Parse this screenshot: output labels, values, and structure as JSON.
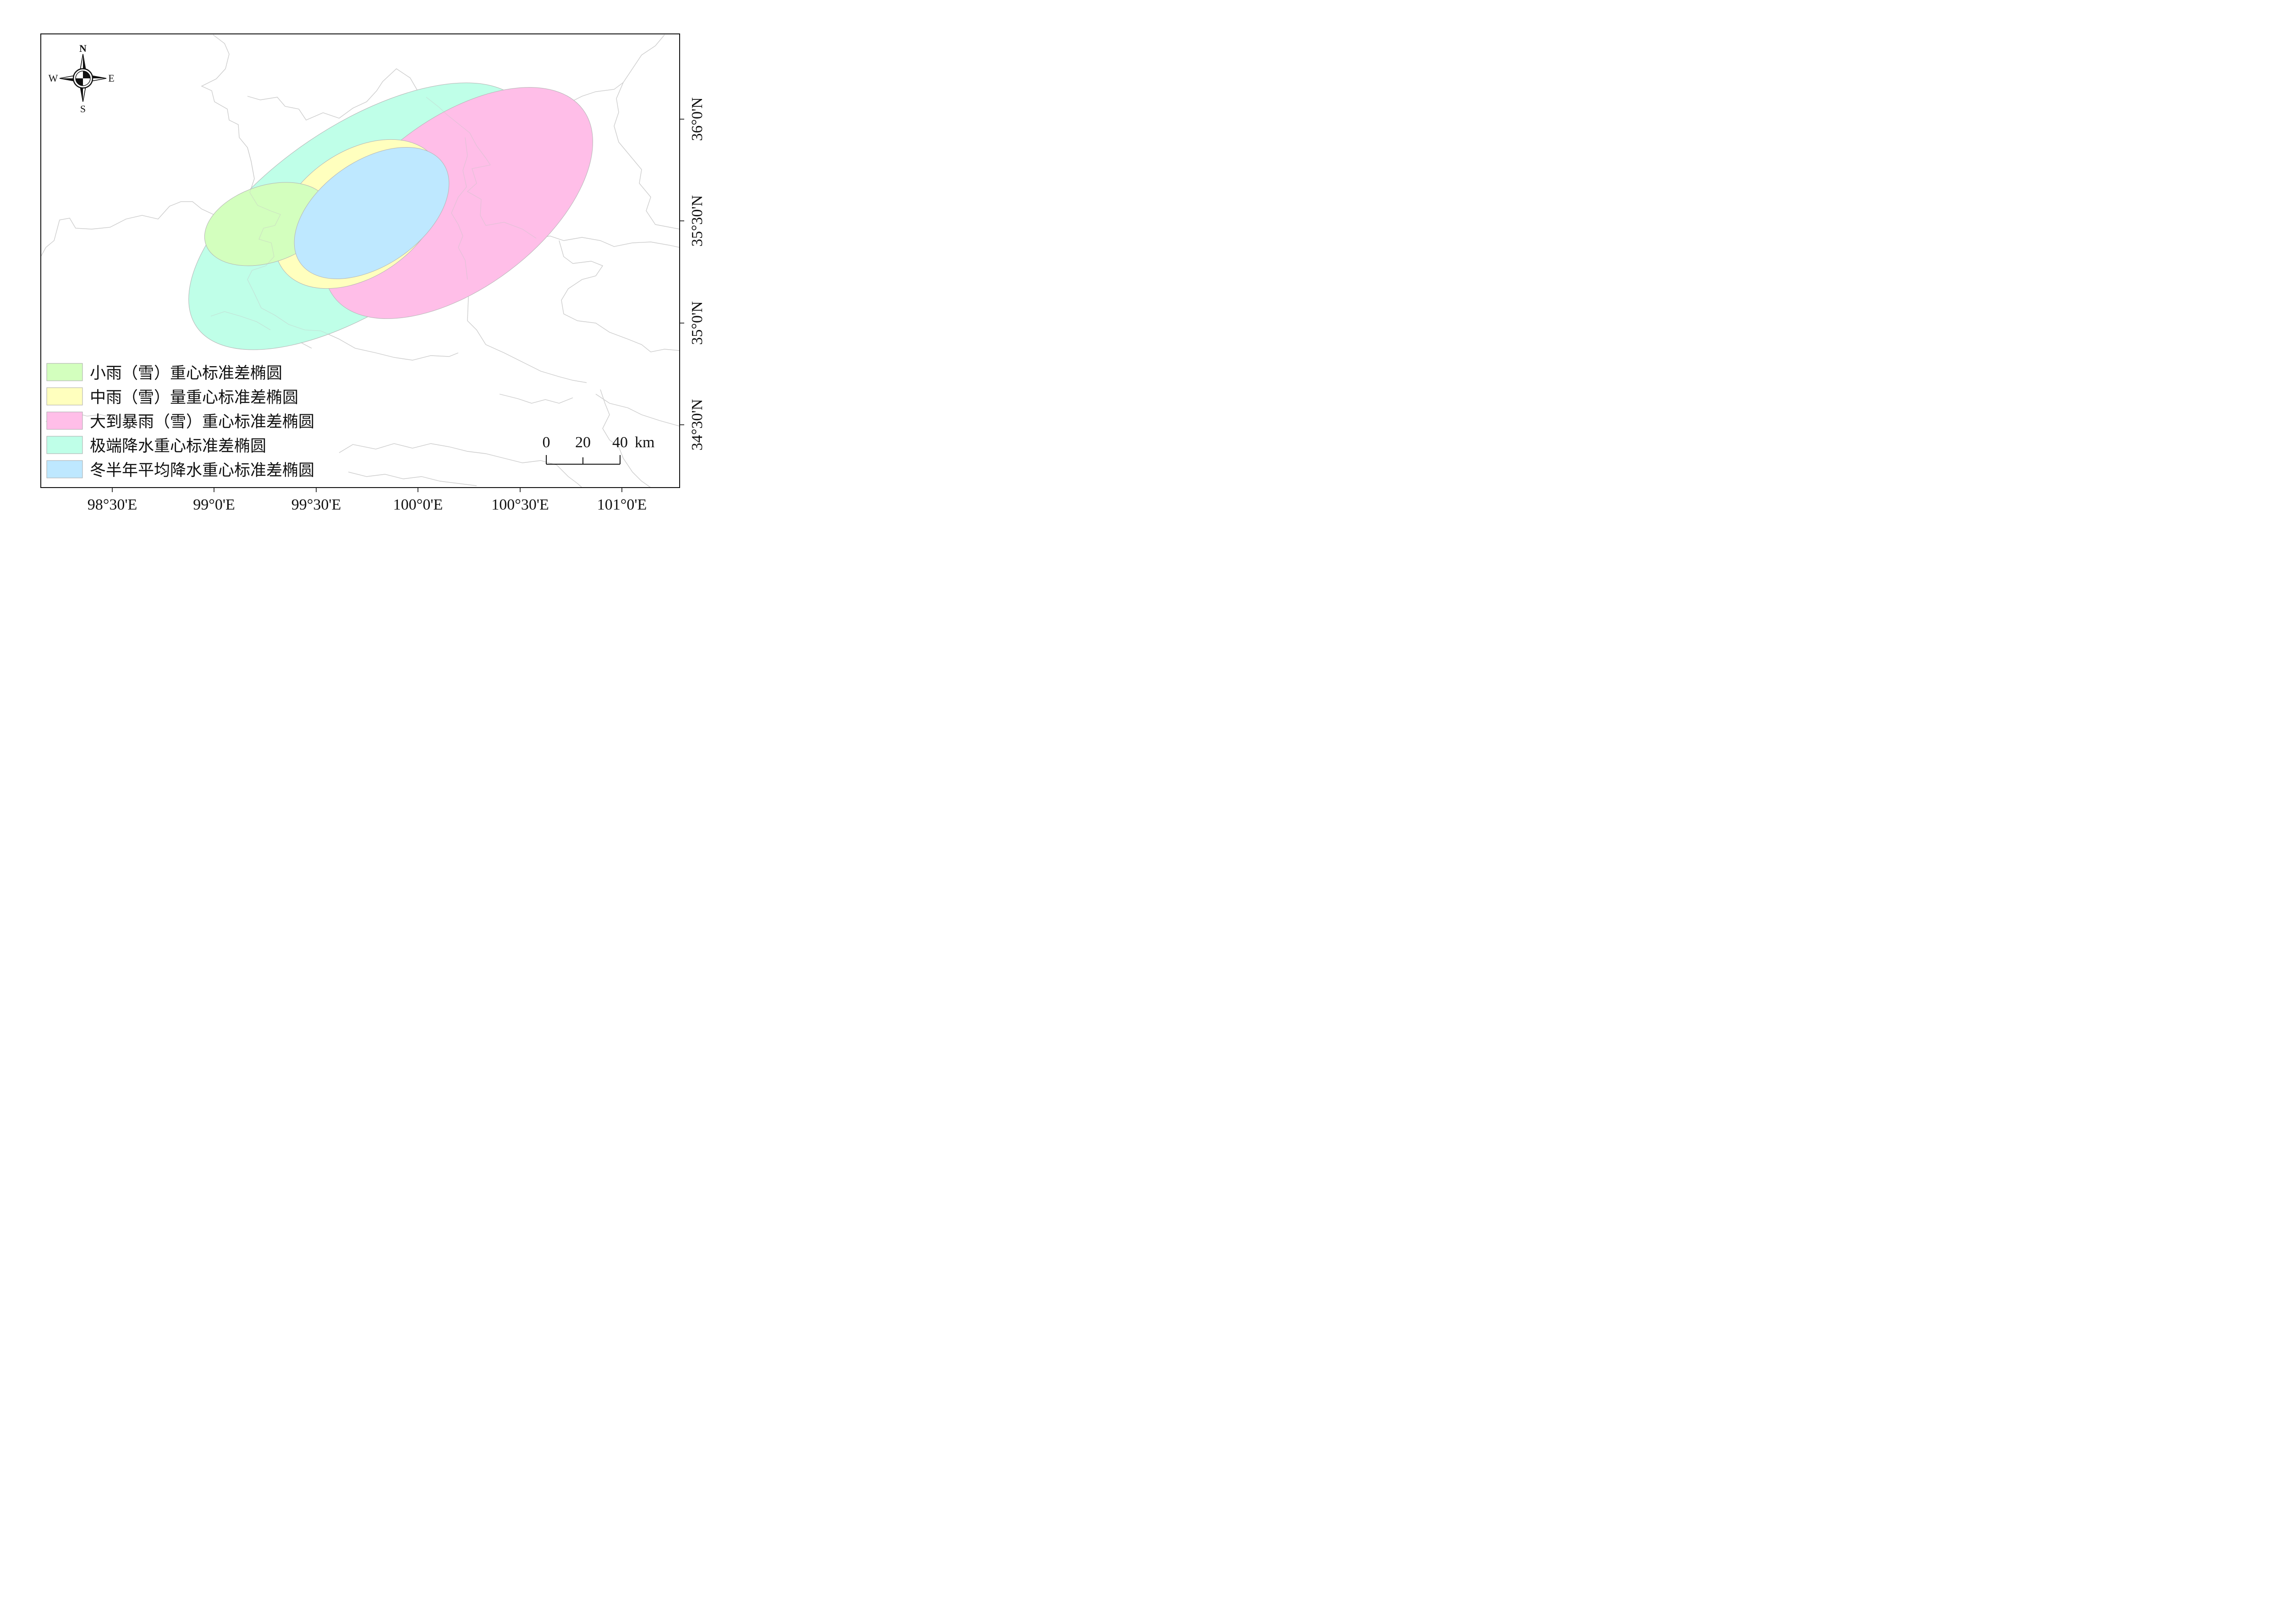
{
  "x_ticks": [
    "98°30'E",
    "99°0'E",
    "99°30'E",
    "100°0'E",
    "100°30'E",
    "101°0'E"
  ],
  "y_ticks": [
    "36°0'N",
    "35°30'N",
    "35°0'N",
    "34°30'N"
  ],
  "compass": {
    "n": "N",
    "s": "S",
    "e": "E",
    "w": "W"
  },
  "scale_bar": {
    "labels": [
      "0",
      "20",
      "40"
    ],
    "unit": "km"
  },
  "legend": [
    {
      "label": "小雨（雪）重心标准差椭圆",
      "color": "#d3ffbe"
    },
    {
      "label": "中雨（雪）量重心标准差椭圆",
      "color": "#ffffbe"
    },
    {
      "label": "大到暴雨（雪）重心标准差椭圆",
      "color": "#ffbee8"
    },
    {
      "label": "极端降水重心标准差椭圆",
      "color": "#bfffe8"
    },
    {
      "label": "冬半年平均降水重心标准差椭圆",
      "color": "#bee8ff"
    }
  ],
  "ellipses": [
    {
      "name": "extreme",
      "color": "#bfffe8"
    },
    {
      "name": "heavy",
      "color": "#ffbee8"
    },
    {
      "name": "moderate",
      "color": "#ffffbe"
    },
    {
      "name": "light",
      "color": "#d3ffbe"
    },
    {
      "name": "winter",
      "color": "#bee8ff"
    }
  ]
}
